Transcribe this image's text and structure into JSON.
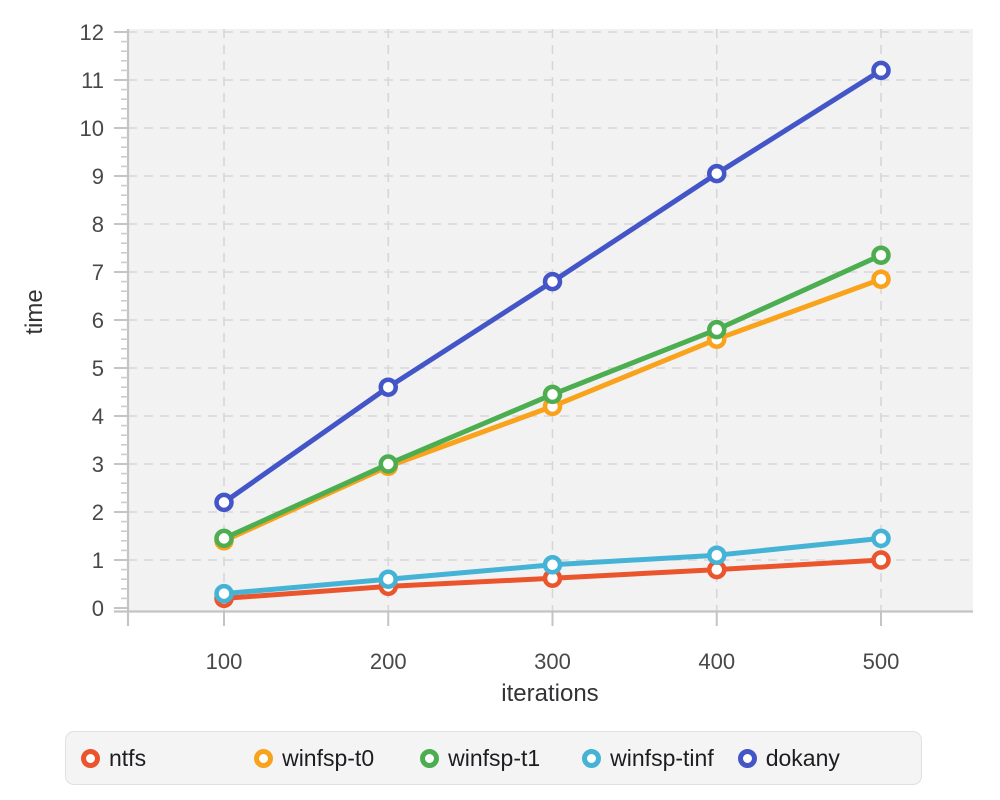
{
  "chart_data": {
    "type": "line",
    "title": "",
    "xlabel": "iterations",
    "ylabel": "time",
    "x": [
      100,
      200,
      300,
      400,
      500
    ],
    "series": [
      {
        "name": "ntfs",
        "color": "#ea552d",
        "values": [
          0.2,
          0.45,
          0.62,
          0.8,
          1.0
        ]
      },
      {
        "name": "winfsp-t0",
        "color": "#f9a21b",
        "values": [
          1.4,
          2.95,
          4.2,
          5.6,
          6.85
        ]
      },
      {
        "name": "winfsp-t1",
        "color": "#4cae50",
        "values": [
          1.45,
          3.0,
          4.45,
          5.8,
          7.35
        ]
      },
      {
        "name": "winfsp-tinf",
        "color": "#44b3d5",
        "values": [
          0.3,
          0.6,
          0.9,
          1.1,
          1.45
        ]
      },
      {
        "name": "dokany",
        "color": "#4355c7",
        "values": [
          2.2,
          4.6,
          6.8,
          9.05,
          11.2
        ]
      }
    ],
    "x_ticks": [
      100,
      200,
      300,
      400,
      500
    ],
    "y_ticks": [
      0,
      1,
      2,
      3,
      4,
      5,
      6,
      7,
      8,
      9,
      10,
      11,
      12
    ],
    "y_minor_step": 0.2,
    "xlim": [
      42,
      556
    ],
    "ylim": [
      0,
      12
    ],
    "grid": true,
    "legend_position": "bottom",
    "plot_bg": "#f2f2f3",
    "grid_color": "#d7d7d9",
    "axis_color": "#c4c4c6",
    "marker_fill": "#ffffff"
  }
}
